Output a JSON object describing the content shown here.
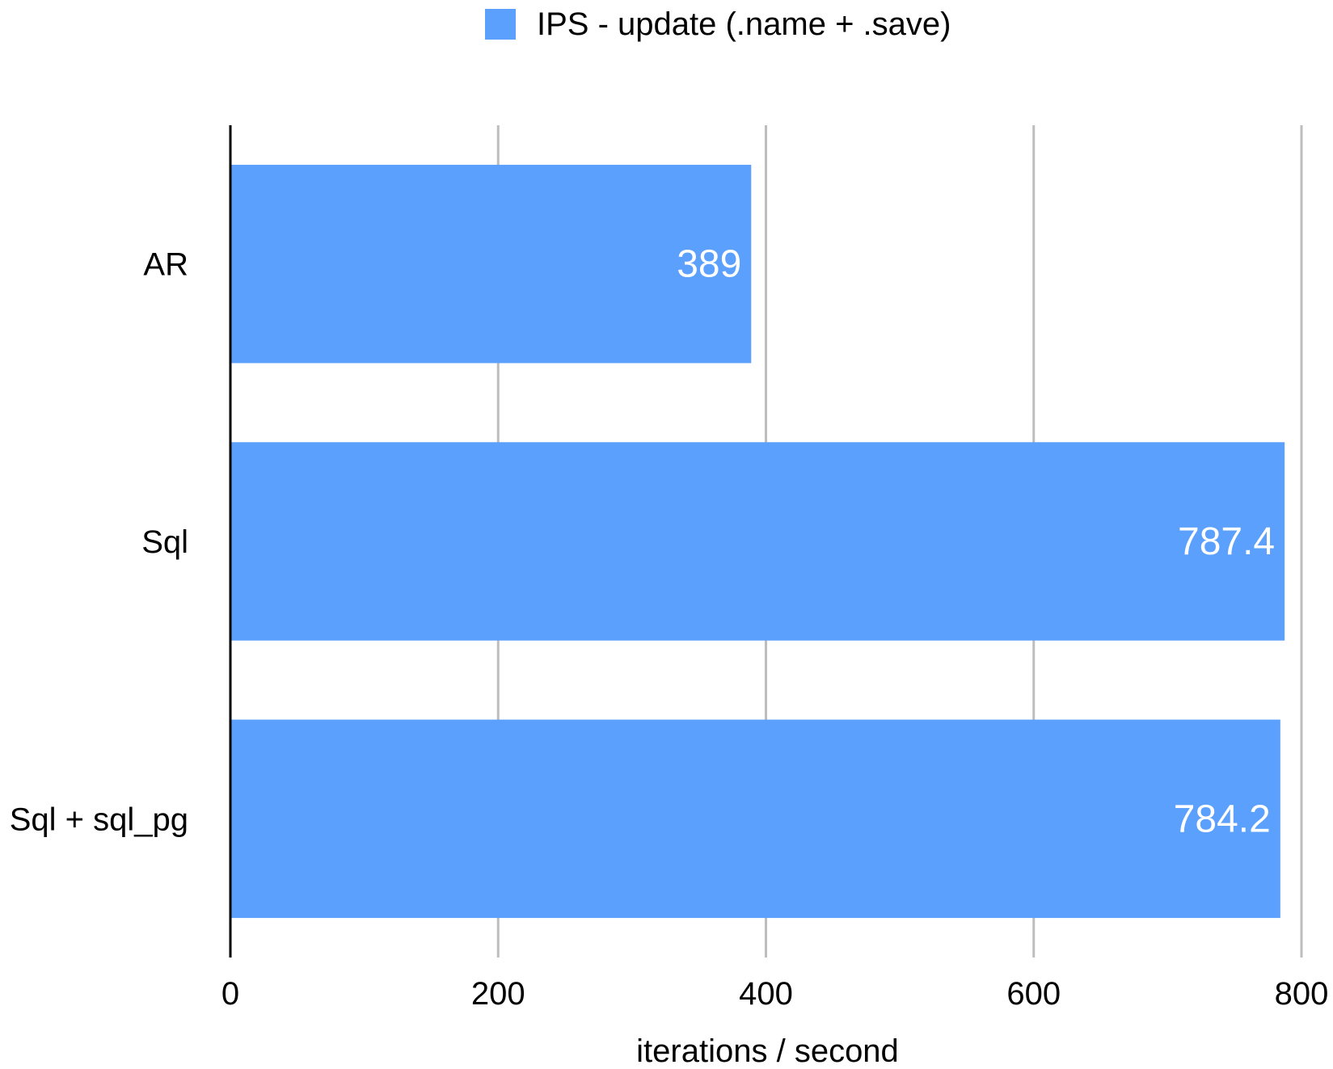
{
  "chart_data": {
    "type": "bar",
    "orientation": "horizontal",
    "categories": [
      "AR",
      "Sql",
      "Sql + sql_pg"
    ],
    "series": [
      {
        "name": "IPS - update (.name + .save)",
        "values": [
          389,
          787.4,
          784.2
        ]
      }
    ],
    "data_labels": [
      "389",
      "787.4",
      "784.2"
    ],
    "xlabel": "iterations / second",
    "ylabel": "",
    "xlim": [
      0,
      800
    ],
    "xticks": [
      "0",
      "200",
      "400",
      "600",
      "800"
    ],
    "grid": "vertical",
    "legend_position": "top",
    "colors": {
      "bar": "#5ba0fd",
      "grid": "#bdbdbd",
      "axis": "#000000",
      "label_on_bar": "#ffffff"
    }
  }
}
